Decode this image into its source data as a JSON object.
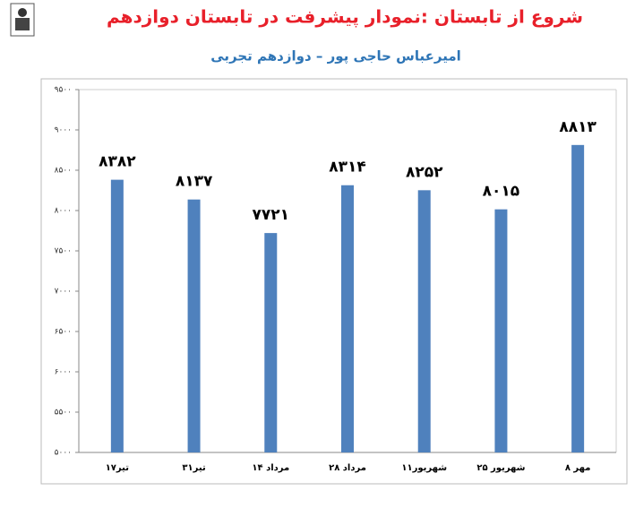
{
  "chart_data": {
    "type": "bar",
    "title": "شروع از تابستان :نمودار پیشرفت در تابستان دوازدهم",
    "subtitle": "امیرعباس حاجی پور – دوازدهم تجربی",
    "categories": [
      "۱۷تیر",
      "۳۱تیر",
      "۱۴ مرداد",
      "۲۸ مرداد",
      "۱۱شهریور",
      "۲۵ شهریور",
      "۸ مهر"
    ],
    "values": [
      8382,
      8137,
      7721,
      8314,
      8252,
      8015,
      8813
    ],
    "value_labels": [
      "۸۳۸۲",
      "۸۱۳۷",
      "۷۷۲۱",
      "۸۳۱۴",
      "۸۲۵۲",
      "۸۰۱۵",
      "۸۸۱۳"
    ],
    "color": "#4f81bd",
    "ylim": [
      5000,
      9500
    ],
    "yticks": [
      {
        "value": 5000,
        "label": "۵۰۰۰"
      },
      {
        "value": 5500,
        "label": "۵۵۰۰"
      },
      {
        "value": 6000,
        "label": "۶۰۰۰"
      },
      {
        "value": 6500,
        "label": "۶۵۰۰"
      },
      {
        "value": 7000,
        "label": "۷۰۰۰"
      },
      {
        "value": 7500,
        "label": "۷۵۰۰"
      },
      {
        "value": 8000,
        "label": "۸۰۰۰"
      },
      {
        "value": 8500,
        "label": "۸۵۰۰"
      },
      {
        "value": 9000,
        "label": "۹۰۰۰"
      },
      {
        "value": 9500,
        "label": "۹۵۰۰"
      }
    ],
    "grid": false
  }
}
